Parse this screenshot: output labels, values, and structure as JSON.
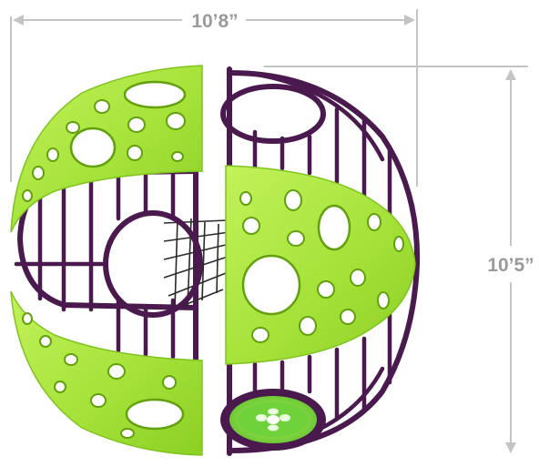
{
  "dimensions": {
    "width_label": "10’8”",
    "height_label": "10’5”"
  },
  "colors": {
    "panel_green": "#a6e23a",
    "frame_purple": "#4a1a4e",
    "dimension_gray": "#9a9a9a"
  }
}
